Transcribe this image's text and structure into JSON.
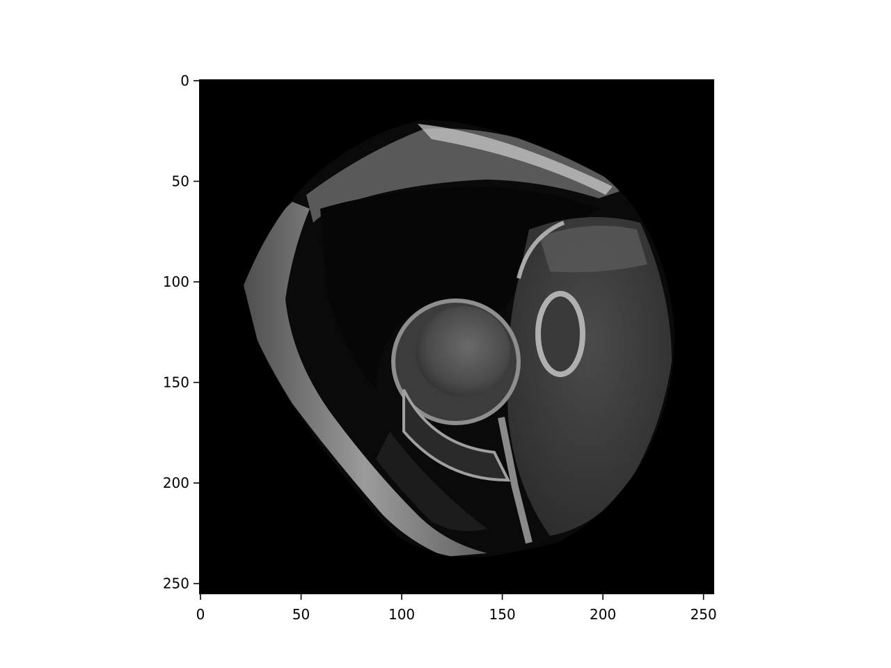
{
  "chart_data": {
    "type": "heatmap",
    "title": "",
    "xlabel": "",
    "ylabel": "",
    "xlim": [
      0,
      256
    ],
    "ylim": [
      256,
      0
    ],
    "x_ticks": [
      0,
      50,
      100,
      150,
      200,
      250
    ],
    "y_ticks": [
      0,
      50,
      100,
      150,
      200,
      250
    ],
    "x_tick_labels": [
      "0",
      "50",
      "100",
      "150",
      "200",
      "250"
    ],
    "y_tick_labels": [
      "0",
      "50",
      "100",
      "150",
      "200",
      "250"
    ],
    "colormap": "gray",
    "grid": false,
    "legend": "none"
  },
  "colors": {
    "background": "#ffffff",
    "image_background": "#000000",
    "axis": "#000000"
  }
}
